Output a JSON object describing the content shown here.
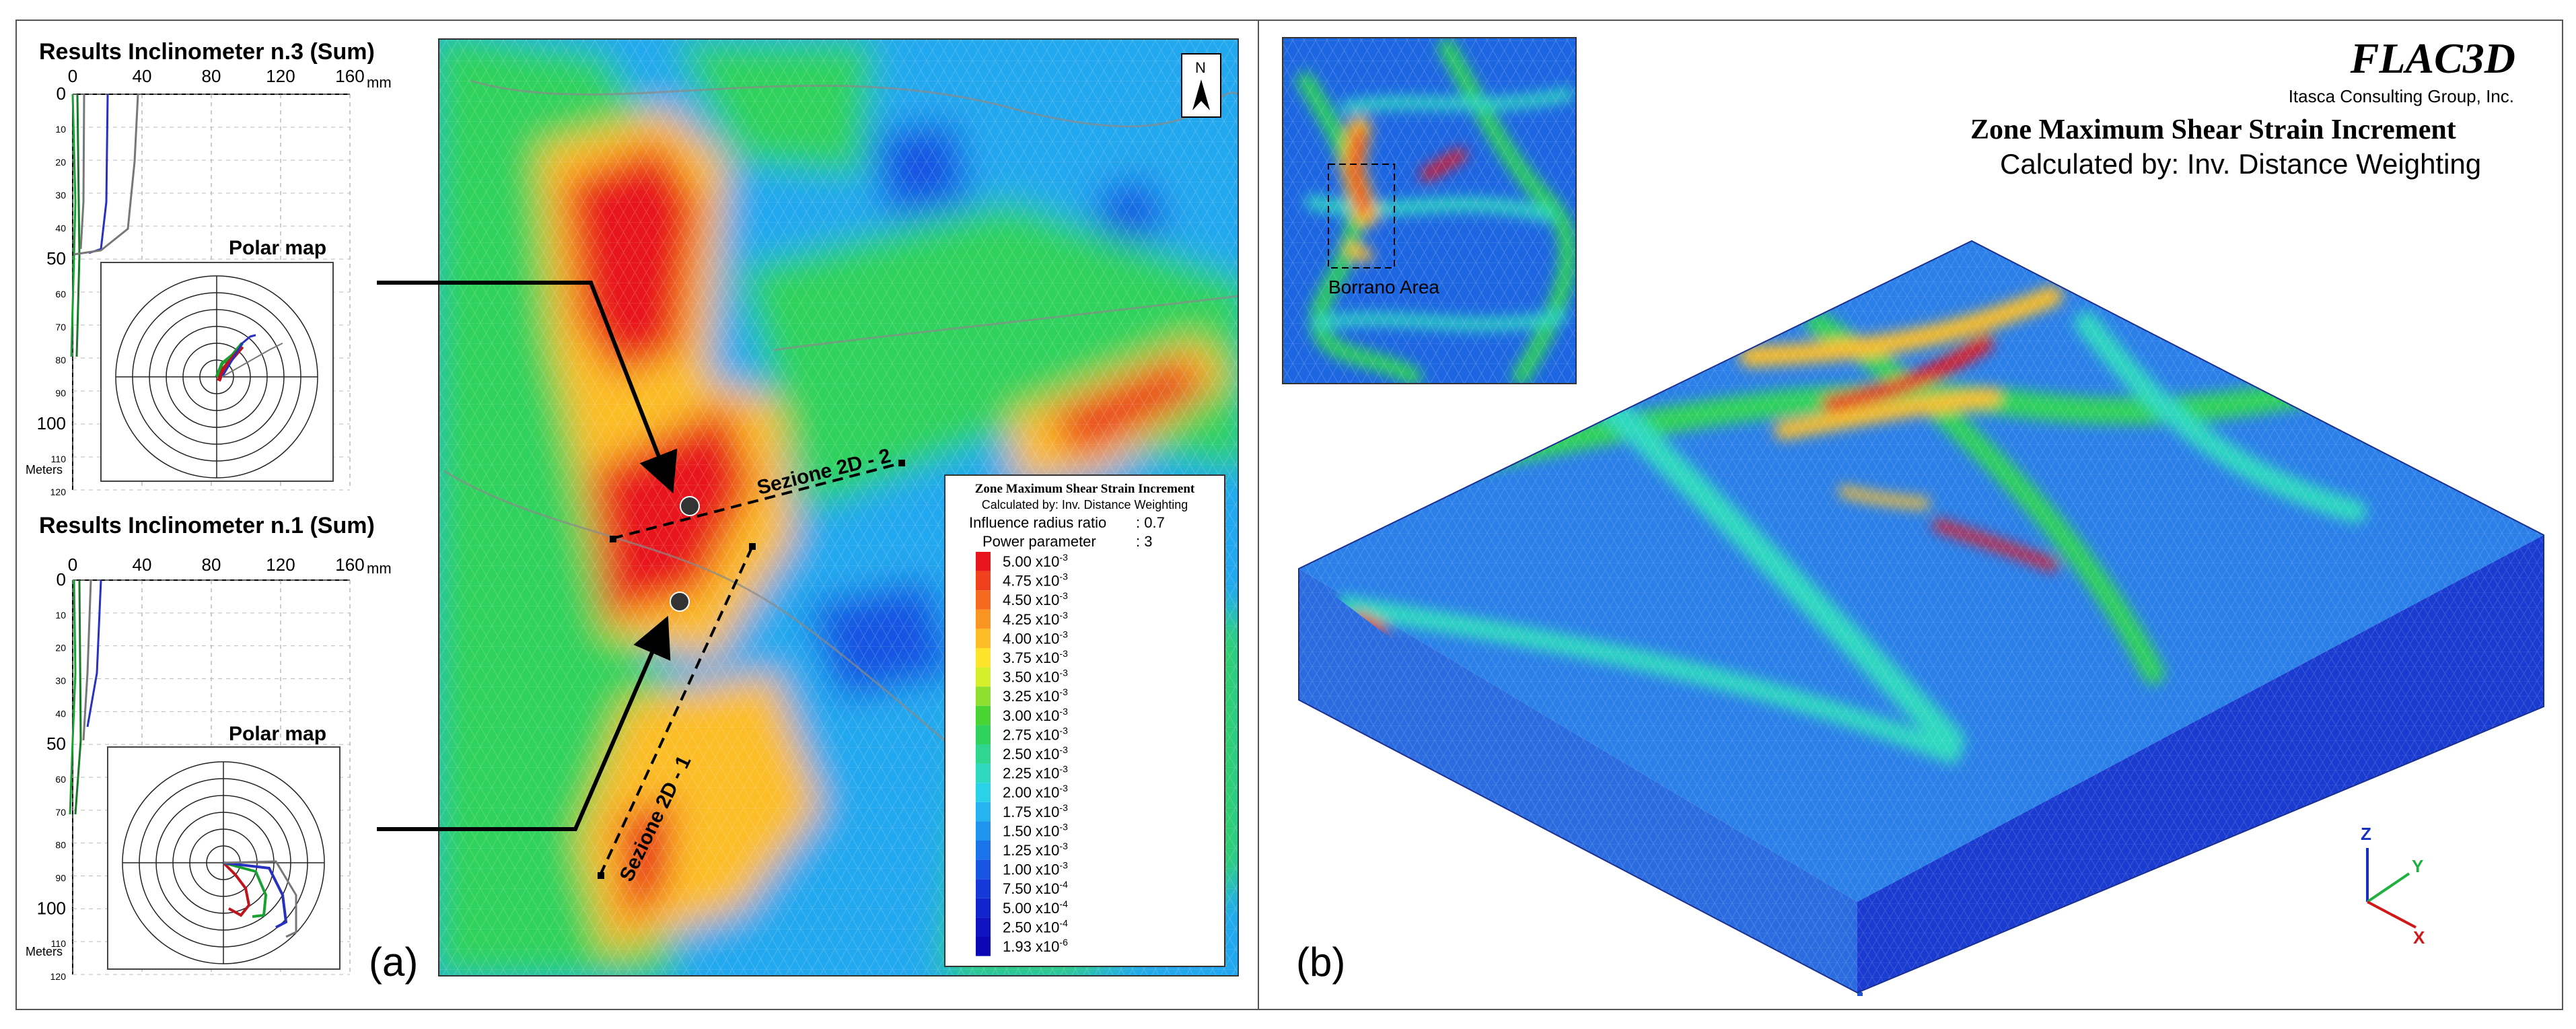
{
  "inclinometers": [
    {
      "title": "Results Inclinometer n.3 (Sum)",
      "unit": "mm",
      "x_ticks": [
        "0",
        "40",
        "80",
        "120",
        "160"
      ],
      "depth_ticks": [
        "0",
        "10",
        "20",
        "30",
        "40",
        "50",
        "60",
        "70",
        "80",
        "90",
        "100",
        "110",
        "120"
      ],
      "depth_label": "Meters",
      "polar_title": "Polar map"
    },
    {
      "title": "Results Inclinometer n.1 (Sum)",
      "unit": "mm",
      "x_ticks": [
        "0",
        "40",
        "80",
        "120",
        "160"
      ],
      "depth_ticks": [
        "0",
        "10",
        "20",
        "30",
        "40",
        "50",
        "60",
        "70",
        "80",
        "90",
        "100",
        "110",
        "120"
      ],
      "depth_label": "Meters",
      "polar_title": "Polar map"
    }
  ],
  "map": {
    "north_label": "N",
    "section_1": "Sezione 2D - 1",
    "section_2": "Sezione 2D - 2",
    "panel_label": "(a)"
  },
  "legend": {
    "title": "Zone Maximum Shear Strain Increment",
    "calc": "Calculated by: Inv. Distance Weighting",
    "radius_label": "Influence radius ratio",
    "radius_value": ": 0.7",
    "power_label": "Power parameter",
    "power_value": ": 3",
    "entries": [
      {
        "mant": "5.00",
        "exp": "-3",
        "color": "#e8141c"
      },
      {
        "mant": "4.75",
        "exp": "-3",
        "color": "#f0401c"
      },
      {
        "mant": "4.50",
        "exp": "-3",
        "color": "#f56a1e"
      },
      {
        "mant": "4.25",
        "exp": "-3",
        "color": "#fa9422"
      },
      {
        "mant": "4.00",
        "exp": "-3",
        "color": "#fcbd26"
      },
      {
        "mant": "3.75",
        "exp": "-3",
        "color": "#fde42b"
      },
      {
        "mant": "3.50",
        "exp": "-3",
        "color": "#d7ef2b"
      },
      {
        "mant": "3.25",
        "exp": "-3",
        "color": "#8fe02e"
      },
      {
        "mant": "3.00",
        "exp": "-3",
        "color": "#4ad433"
      },
      {
        "mant": "2.75",
        "exp": "-3",
        "color": "#2fd25c"
      },
      {
        "mant": "2.50",
        "exp": "-3",
        "color": "#2fd68f"
      },
      {
        "mant": "2.25",
        "exp": "-3",
        "color": "#2ed9c0"
      },
      {
        "mant": "2.00",
        "exp": "-3",
        "color": "#2ad2e8"
      },
      {
        "mant": "1.75",
        "exp": "-3",
        "color": "#25b4ef"
      },
      {
        "mant": "1.50",
        "exp": "-3",
        "color": "#1f94ef"
      },
      {
        "mant": "1.25",
        "exp": "-3",
        "color": "#1b74ea"
      },
      {
        "mant": "1.00",
        "exp": "-3",
        "color": "#1755e2"
      },
      {
        "mant": "7.50",
        "exp": "-4",
        "color": "#1539d8"
      },
      {
        "mant": "5.00",
        "exp": "-4",
        "color": "#1224cc"
      },
      {
        "mant": "2.50",
        "exp": "-4",
        "color": "#0f14c0"
      },
      {
        "mant": "1.93",
        "exp": "-6",
        "color": "#0a06b4"
      }
    ]
  },
  "model": {
    "software": "FLAC3D",
    "company": "Itasca Consulting Group, Inc.",
    "title": "Zone Maximum Shear Strain Increment",
    "calc": "Calculated by: Inv. Distance Weighting",
    "inset_label": "Borrano Area",
    "panel_label": "(b)",
    "axes": {
      "z": "Z",
      "y": "Y",
      "x": "X"
    }
  },
  "colors": {
    "red": "#e8141c",
    "yellow": "#fde42b",
    "green": "#4ad433",
    "cyan": "#2ed9c0",
    "blue": "#1f74e8",
    "navy": "#0a10b4"
  }
}
